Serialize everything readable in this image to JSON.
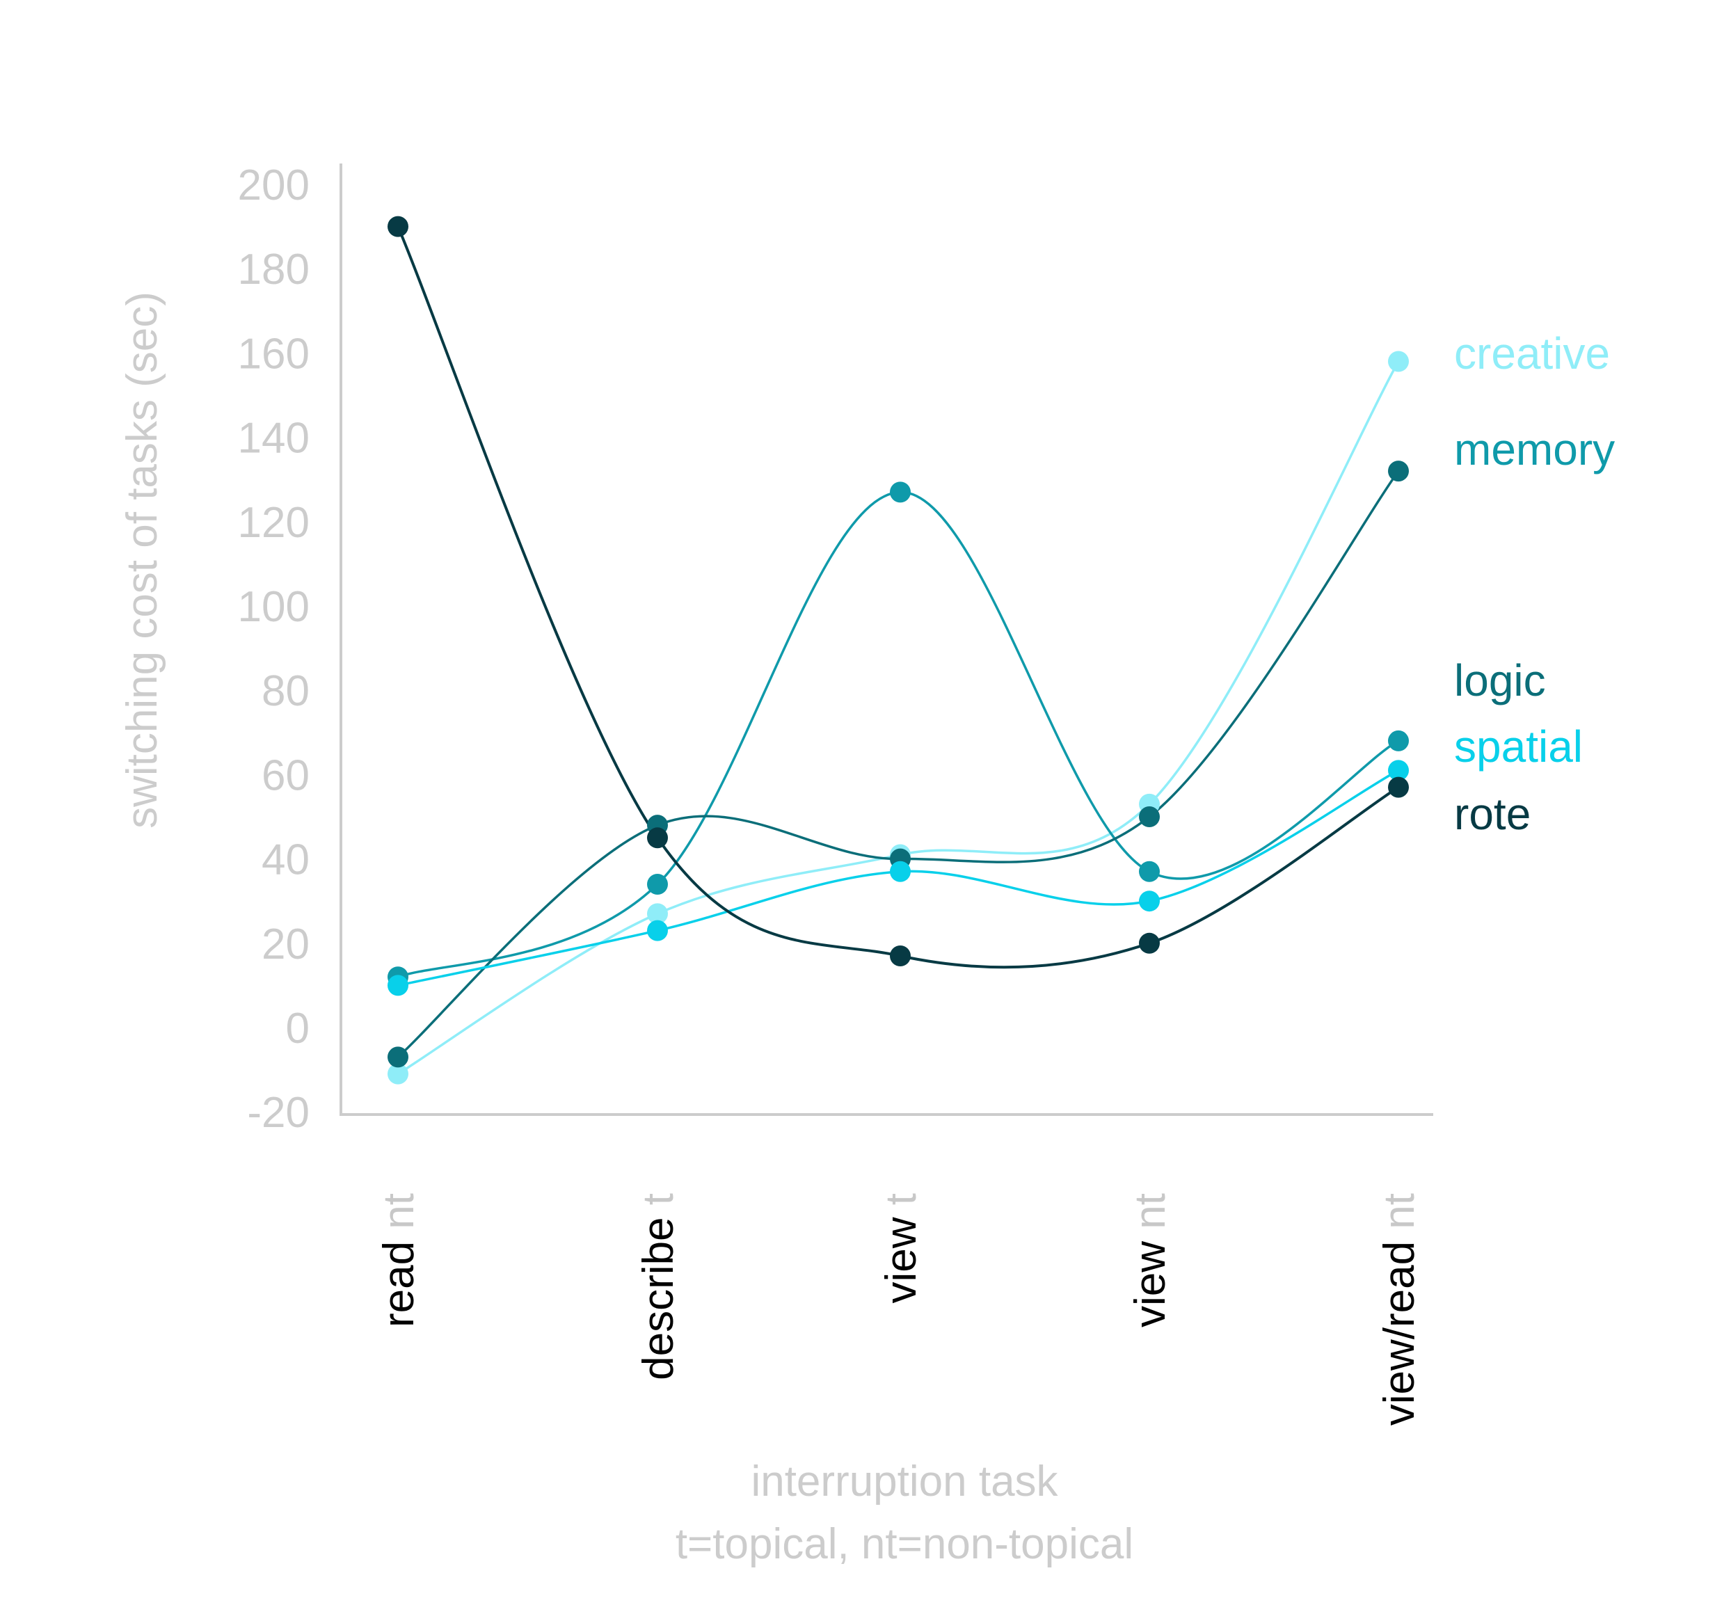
{
  "chart_data": {
    "type": "line",
    "ylabel": "switching cost of tasks (sec)",
    "xlabel": "interruption task",
    "xlabel_sub": "t=topical, nt=non-topical",
    "ylim": [
      -20,
      200
    ],
    "yticks": [
      200,
      180,
      160,
      140,
      120,
      100,
      80,
      60,
      40,
      20,
      0,
      -20
    ],
    "categories": [
      {
        "main": "read",
        "suffix": " nt"
      },
      {
        "main": "describe",
        "suffix": " t"
      },
      {
        "main": "view",
        "suffix": " t"
      },
      {
        "main": "view",
        "suffix": " nt"
      },
      {
        "main": "view/read",
        "suffix": " nt"
      }
    ],
    "series": [
      {
        "name": "creative",
        "color": "#8fedf8",
        "values": [
          -11,
          27,
          41,
          53,
          158
        ]
      },
      {
        "name": "memory",
        "color": "#0f9aaa",
        "values": [
          12,
          34,
          127,
          37,
          68
        ]
      },
      {
        "name": "logic",
        "color": "#0b6e79",
        "values": [
          -7,
          48,
          40,
          50,
          132
        ]
      },
      {
        "name": "spatial",
        "color": "#08d0ea",
        "values": [
          10,
          23,
          37,
          30,
          61
        ]
      },
      {
        "name": "rote",
        "color": "#073a44",
        "values": [
          190,
          45,
          17,
          20,
          57
        ]
      }
    ],
    "legend": "right, next to line ends",
    "grid": false
  },
  "colors": {
    "axis": "#cccccc",
    "tick_text": "#cccccc",
    "category_main": "#000000",
    "category_suffix": "#c8c8c8"
  }
}
